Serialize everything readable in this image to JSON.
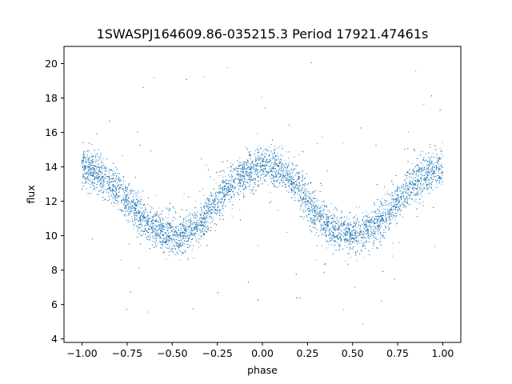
{
  "chart_data": {
    "type": "scatter",
    "title": "1SWASPJ164609.86-035215.3 Period 17921.47461s",
    "xlabel": "phase",
    "ylabel": "flux",
    "xlim": [
      -1.1,
      1.1
    ],
    "ylim": [
      3.8,
      21.0
    ],
    "x_ticks": [
      "−1.00",
      "−0.75",
      "−0.50",
      "−0.25",
      "0.00",
      "0.25",
      "0.50",
      "0.75",
      "1.00"
    ],
    "x_tick_values": [
      -1.0,
      -0.75,
      -0.5,
      -0.25,
      0.0,
      0.25,
      0.5,
      0.75,
      1.0
    ],
    "y_ticks": [
      "4",
      "6",
      "8",
      "10",
      "12",
      "14",
      "16",
      "18",
      "20"
    ],
    "y_tick_values": [
      4,
      6,
      8,
      10,
      12,
      14,
      16,
      18,
      20
    ],
    "grid": false,
    "series": [
      {
        "color": "#1f77b4",
        "phase_range": [
          -1.0,
          1.0
        ],
        "model": "flux ≈ 12 + 2·cos(2π·phase), scatter ≈ ±0.5, with sparse outliers between 4.5 and 20.2",
        "x": [
          -1.0,
          -0.9,
          -0.8,
          -0.75,
          -0.7,
          -0.6,
          -0.5,
          -0.45,
          -0.4,
          -0.3,
          -0.25,
          -0.2,
          -0.1,
          0.0,
          0.05,
          0.1,
          0.2,
          0.25,
          0.3,
          0.4,
          0.5,
          0.55,
          0.6,
          0.7,
          0.75,
          0.8,
          0.9,
          1.0
        ],
        "y": [
          13.9,
          13.6,
          12.7,
          12.0,
          11.4,
          10.5,
          10.0,
          10.0,
          10.3,
          11.3,
          12.0,
          12.7,
          13.6,
          14.0,
          14.0,
          13.8,
          12.9,
          12.0,
          11.3,
          10.3,
          10.0,
          10.0,
          10.3,
          11.3,
          12.0,
          12.7,
          13.6,
          13.9
        ]
      }
    ]
  }
}
